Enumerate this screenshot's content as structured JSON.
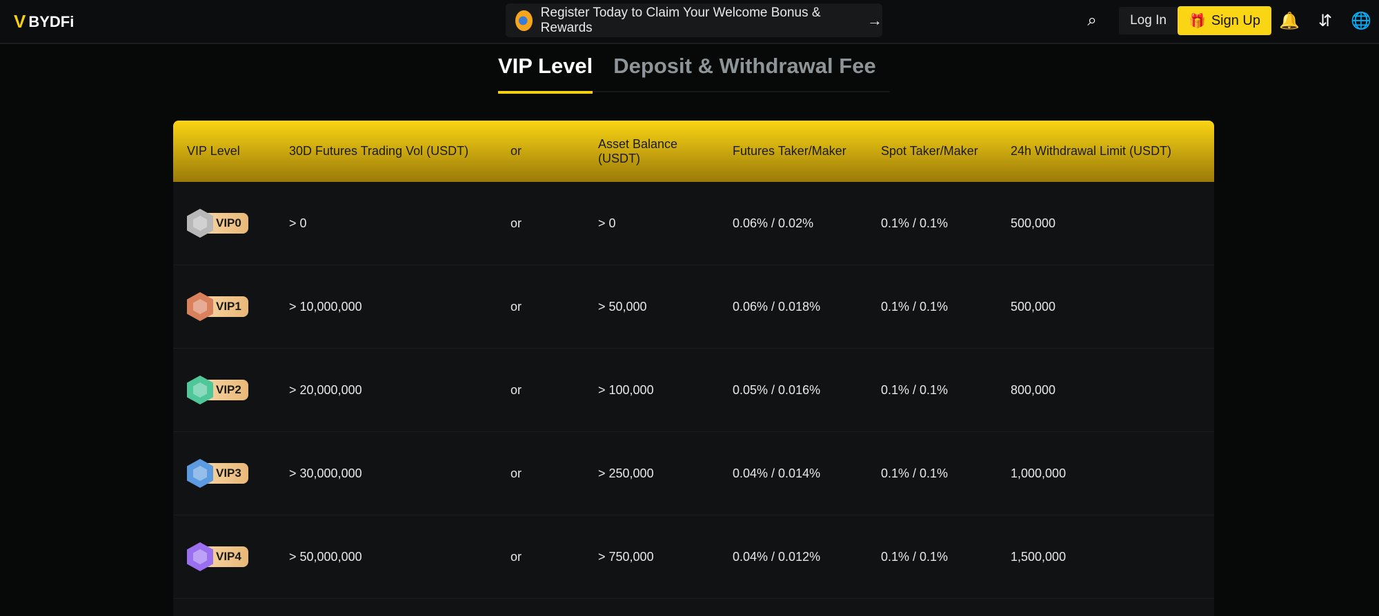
{
  "nav": {
    "logo": "BYDFi",
    "promo": "Register Today to Claim Your Welcome Bonus & Rewards",
    "login": "Log In",
    "signup": "Sign Up"
  },
  "tabs": [
    {
      "label": "VIP Level",
      "active": true
    },
    {
      "label": "Deposit & Withdrawal Fee",
      "active": false
    }
  ],
  "table": {
    "headers": [
      "VIP Level",
      "30D Futures Trading Vol (USDT)",
      "or",
      "Asset Balance (USDT)",
      "Futures Taker/Maker",
      "Spot Taker/Maker",
      "24h Withdrawal Limit (USDT)"
    ],
    "rows": [
      {
        "level": "VIP0",
        "color": "#b8b8b8",
        "vol": "> 0",
        "or": "or",
        "balance": "> 0",
        "futures": "0.06% / 0.02%",
        "spot": "0.1% / 0.1%",
        "limit": "500,000"
      },
      {
        "level": "VIP1",
        "color": "#d9805c",
        "vol": "> 10,000,000",
        "or": "or",
        "balance": "> 50,000",
        "futures": "0.06% / 0.018%",
        "spot": "0.1% / 0.1%",
        "limit": "500,000"
      },
      {
        "level": "VIP2",
        "color": "#4fc79a",
        "vol": "> 20,000,000",
        "or": "or",
        "balance": "> 100,000",
        "futures": "0.05% / 0.016%",
        "spot": "0.1% / 0.1%",
        "limit": "800,000"
      },
      {
        "level": "VIP3",
        "color": "#5d9be0",
        "vol": "> 30,000,000",
        "or": "or",
        "balance": "> 250,000",
        "futures": "0.04% / 0.014%",
        "spot": "0.1% / 0.1%",
        "limit": "1,000,000"
      },
      {
        "level": "VIP4",
        "color": "#9a6ff0",
        "vol": "> 50,000,000",
        "or": "or",
        "balance": "> 750,000",
        "futures": "0.04% / 0.012%",
        "spot": "0.1% / 0.1%",
        "limit": "1,500,000"
      }
    ]
  }
}
